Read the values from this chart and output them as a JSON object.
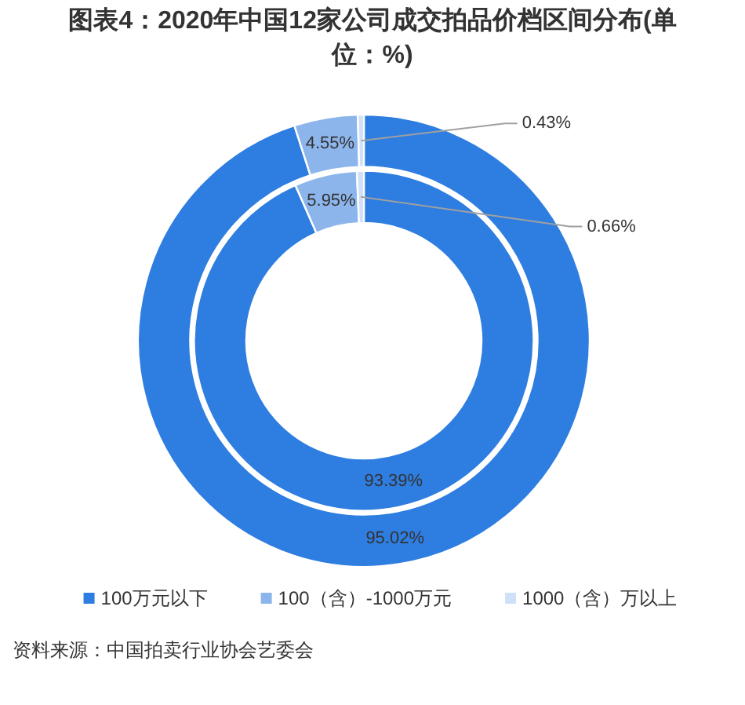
{
  "chart_data": {
    "type": "donut",
    "title": "图表4：2020年中国12家公司成交拍品价档区间分布(单位：%)",
    "categories": [
      "100万元以下",
      "100（含）-1000万元",
      "1000（含）万以上"
    ],
    "colors": [
      "#2e7de0",
      "#8cb5ec",
      "#cfe1f8"
    ],
    "series": [
      {
        "values": [
          93.39,
          5.95,
          0.66
        ],
        "value_labels": [
          "93.39%",
          "5.95%",
          "0.66%"
        ]
      },
      {
        "values": [
          95.02,
          4.55,
          0.43
        ],
        "value_labels": [
          "95.02%",
          "4.55%",
          "0.43%"
        ]
      }
    ],
    "legend": "bottom",
    "annotations": [
      "资料来源：中国拍卖行业协会艺委会"
    ]
  }
}
